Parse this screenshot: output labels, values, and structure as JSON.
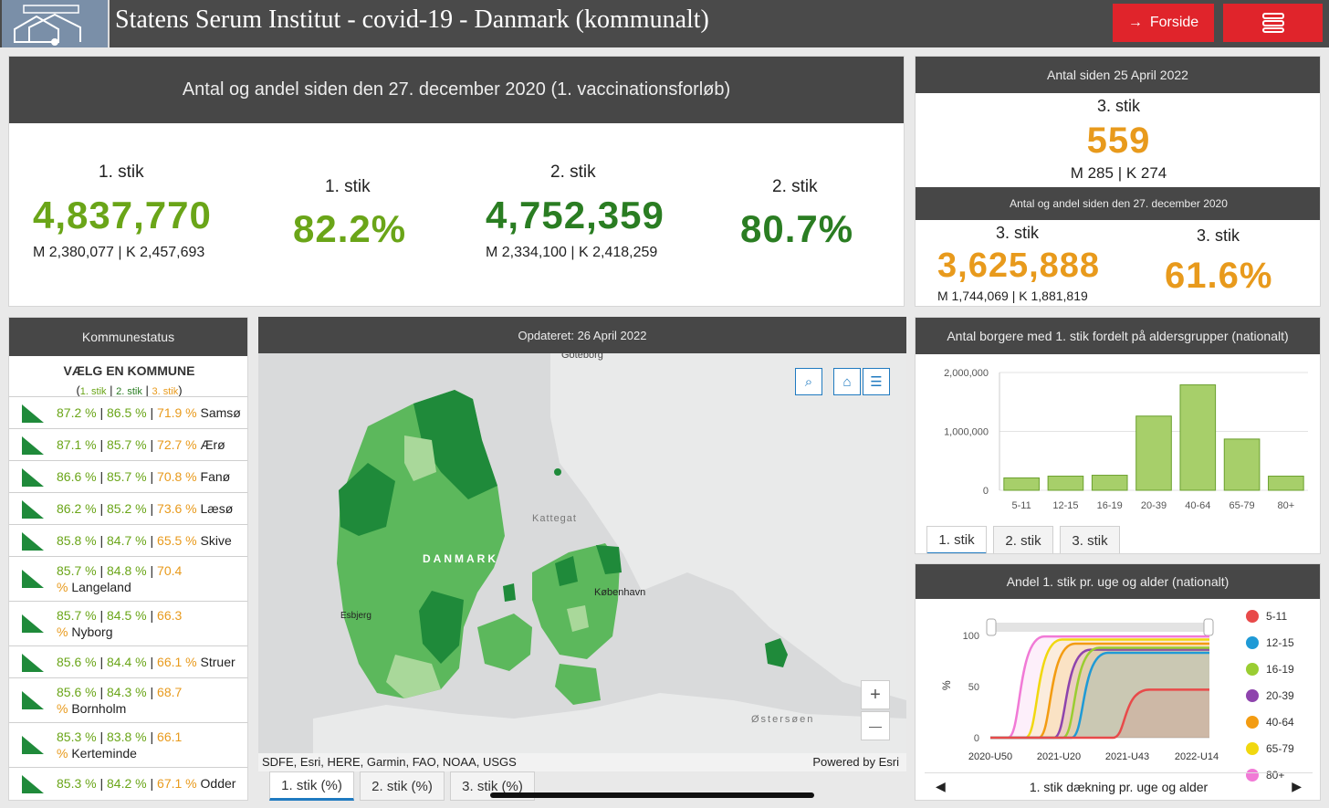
{
  "header": {
    "title": "Statens Serum Institut - covid-19 - Danmark (kommunalt)",
    "home_label": "Forside",
    "home_icon": "arrow-right-icon",
    "menu_icon": "hamburger-menu-icon",
    "accent": "#e0242b"
  },
  "vaccination_panel": {
    "title": "Antal og andel siden den 27. december 2020 (1. vaccinationsforløb)",
    "stats": [
      {
        "label": "1. stik",
        "value": "4,837,770",
        "sub": "M 2,380,077 | K 2,457,693"
      },
      {
        "label": "1. stik",
        "value": "82.2%"
      },
      {
        "label": "2. stik",
        "value": "4,752,359",
        "sub": "M 2,334,100 | K 2,418,259"
      },
      {
        "label": "2. stik",
        "value": "80.7%"
      }
    ]
  },
  "booster_panel": {
    "title": "Antal siden 25 April 2022",
    "label": "3. stik",
    "value": "559",
    "sub": "M 285 | K 274",
    "title2": "Antal og andel siden den 27. december 2020",
    "stats": [
      {
        "label": "3. stik",
        "value": "3,625,888",
        "sub": "M 1,744,069 | K 1,881,819"
      },
      {
        "label": "3. stik",
        "value": "61.6%"
      }
    ]
  },
  "kommune_panel": {
    "title": "Kommunestatus",
    "heading": "VÆLG EN KOMMUNE",
    "legend": {
      "open": "(",
      "s1": "1. stik",
      "sep": " | ",
      "s2": "2. stik",
      "s3": "3. stik",
      "close": ")"
    },
    "items": [
      {
        "p1": "87.2 %",
        "p2": "86.5 %",
        "p3": "71.9 %",
        "name": "Samsø"
      },
      {
        "p1": "87.1 %",
        "p2": "85.7 %",
        "p3": "72.7 %",
        "name": "Ærø"
      },
      {
        "p1": "86.6 %",
        "p2": "85.7 %",
        "p3": "70.8 %",
        "name": "Fanø"
      },
      {
        "p1": "86.2 %",
        "p2": "85.2 %",
        "p3": "73.6 %",
        "name": "Læsø"
      },
      {
        "p1": "85.8 %",
        "p2": "84.7 %",
        "p3": "65.5 %",
        "name": "Skive"
      },
      {
        "p1": "85.7 %",
        "p2": "84.8 %",
        "p3": "70.4",
        "p3b": "%",
        "name": "Langeland"
      },
      {
        "p1": "85.7 %",
        "p2": "84.5 %",
        "p3": "66.3",
        "p3b": "%",
        "name": "Nyborg"
      },
      {
        "p1": "85.6 %",
        "p2": "84.4 %",
        "p3": "66.1 %",
        "name": "Struer"
      },
      {
        "p1": "85.6 %",
        "p2": "84.3 %",
        "p3": "68.7",
        "p3b": "%",
        "name": "Bornholm"
      },
      {
        "p1": "85.3 %",
        "p2": "83.8 %",
        "p3": "66.1",
        "p3b": "%",
        "name": "Kerteminde"
      },
      {
        "p1": "85.3 %",
        "p2": "84.2 %",
        "p3": "67.1 %",
        "name": "Odder"
      }
    ]
  },
  "map_panel": {
    "title": "Opdateret: 26 April 2022",
    "labels": {
      "goteborg": "Göteborg",
      "kattegat": "Kattegat",
      "danmark": "DANMARK",
      "kobenhavn": "København",
      "esbjerg": "Esbjerg",
      "ostersoen": "Østersøen"
    },
    "attribution": "SDFE, Esri, HERE, Garmin, FAO, NOAA, USGS",
    "powered": "Powered by Esri",
    "buttons": {
      "search_icon": "search-icon",
      "home_icon": "home-icon",
      "list_icon": "list-icon",
      "zoom_in": "+",
      "zoom_out": "—"
    },
    "tabs": [
      "1. stik (%)",
      "2. stik (%)",
      "3. stik (%)"
    ],
    "colors": {
      "dark": "#1f8a3a",
      "mid": "#5cb85c",
      "light": "#a9d89a",
      "land": "#e9eaea",
      "water": "#d9dadb"
    }
  },
  "age_chart_panel": {
    "title": "Antal borgere med 1. stik fordelt på aldersgrupper (nationalt)",
    "tabs": [
      "1. stik",
      "2. stik",
      "3. stik"
    ]
  },
  "weekly_panel": {
    "title": "Andel 1. stik pr. uge og alder (nationalt)",
    "footer": "1. stik dækning pr. uge og alder",
    "footer_prev_icon": "chevron-left-icon",
    "footer_next_icon": "chevron-right-icon"
  },
  "chart_data": [
    {
      "type": "bar",
      "categories": [
        "5-11",
        "12-15",
        "16-19",
        "20-39",
        "40-64",
        "65-79",
        "80+"
      ],
      "values": [
        210000,
        240000,
        255000,
        1260000,
        1790000,
        870000,
        240000
      ],
      "ylim": [
        0,
        2000000
      ],
      "yticks": [
        "0",
        "1,000,000",
        "2,000,000"
      ],
      "color": "#a7cf6a",
      "grid": true
    },
    {
      "type": "line",
      "ylabel": "%",
      "ylim": [
        0,
        100
      ],
      "yticks": [
        "0",
        "50",
        "100"
      ],
      "xticks": [
        "2020-U50",
        "2021-U20",
        "2021-U43",
        "2022-U14"
      ],
      "series": [
        {
          "name": "5-11",
          "color": "#e84a4a",
          "start": 0.56,
          "final": 47
        },
        {
          "name": "12-15",
          "color": "#1f9ad6",
          "start": 0.37,
          "final": 83
        },
        {
          "name": "16-19",
          "color": "#9acd32",
          "start": 0.33,
          "final": 88
        },
        {
          "name": "20-39",
          "color": "#8e44ad",
          "start": 0.29,
          "final": 86
        },
        {
          "name": "40-64",
          "color": "#f39c12",
          "start": 0.22,
          "final": 92
        },
        {
          "name": "65-79",
          "color": "#f1d80f",
          "start": 0.16,
          "final": 96
        },
        {
          "name": "80+",
          "color": "#f17ad6",
          "start": 0.08,
          "final": 99
        }
      ]
    }
  ]
}
